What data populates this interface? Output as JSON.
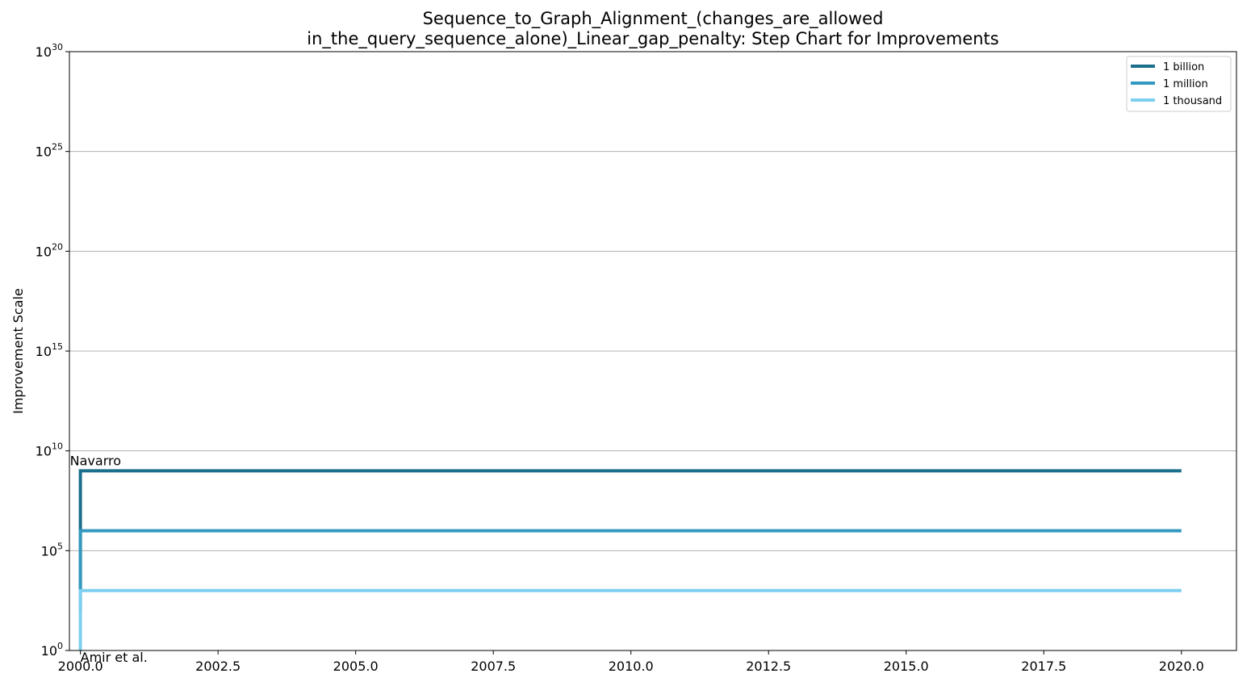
{
  "chart_data": {
    "type": "line",
    "step": true,
    "title_line1": "Sequence_to_Graph_Alignment_(changes_are_allowed",
    "title_line2": "in_the_query_sequence_alone)_Linear_gap_penalty: Step Chart for Improvements",
    "xlabel": "",
    "ylabel": "Improvement Scale",
    "yscale": "log",
    "xlim": [
      1999.8,
      2021.0
    ],
    "ylim_exp": [
      0,
      30
    ],
    "grid": "y-major",
    "legend_position": "top-right",
    "x_ticks": [
      {
        "value": 2000.0,
        "label": "2000.0"
      },
      {
        "value": 2002.5,
        "label": "2002.5"
      },
      {
        "value": 2005.0,
        "label": "2005.0"
      },
      {
        "value": 2007.5,
        "label": "2007.5"
      },
      {
        "value": 2010.0,
        "label": "2010.0"
      },
      {
        "value": 2012.5,
        "label": "2012.5"
      },
      {
        "value": 2015.0,
        "label": "2015.0"
      },
      {
        "value": 2017.5,
        "label": "2017.5"
      },
      {
        "value": 2020.0,
        "label": "2020.0"
      }
    ],
    "y_ticks": [
      {
        "exp": 0,
        "base": "10",
        "sup": "0"
      },
      {
        "exp": 5,
        "base": "10",
        "sup": "5"
      },
      {
        "exp": 10,
        "base": "10",
        "sup": "10"
      },
      {
        "exp": 15,
        "base": "10",
        "sup": "15"
      },
      {
        "exp": 20,
        "base": "10",
        "sup": "20"
      },
      {
        "exp": 25,
        "base": "10",
        "sup": "25"
      },
      {
        "exp": 30,
        "base": "10",
        "sup": "30"
      }
    ],
    "series": [
      {
        "name": "1 billion",
        "color": "#1b6f8c",
        "x": [
          2000,
          2000,
          2020
        ],
        "y": [
          1000,
          1000000000,
          1000000000
        ]
      },
      {
        "name": "1 million",
        "color": "#3399bf",
        "x": [
          2000,
          2000,
          2020
        ],
        "y": [
          100,
          1000000,
          1000000
        ]
      },
      {
        "name": "1 thousand",
        "color": "#7dcff0",
        "x": [
          2000,
          2000,
          2020
        ],
        "y": [
          1,
          1000,
          1000
        ]
      }
    ],
    "annotations": [
      {
        "text": "Navarro",
        "x": 2000,
        "y": 1000000000,
        "anchor": "above"
      },
      {
        "text": "Amir et al.",
        "x": 2000,
        "y": 1,
        "anchor": "below"
      }
    ]
  }
}
